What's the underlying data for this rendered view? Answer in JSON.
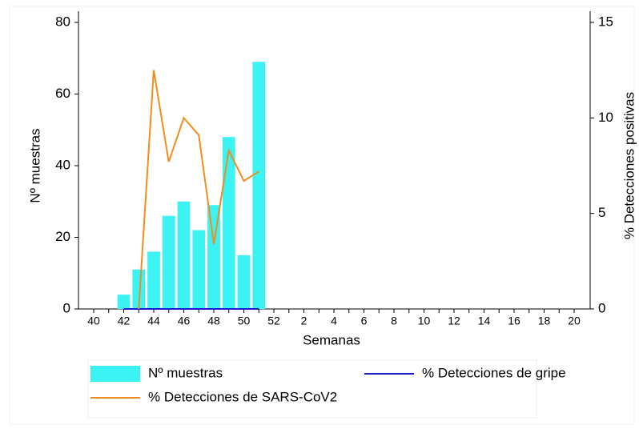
{
  "chart_data": {
    "type": "bar",
    "x_label": "Semanas",
    "y_label": "Nº muestras",
    "y2_label": "% Detecciones positivas",
    "categories": [
      "40",
      null,
      "42",
      null,
      "44",
      null,
      "46",
      null,
      "48",
      null,
      "50",
      null,
      "52",
      null,
      "2",
      null,
      "4",
      null,
      "6",
      null,
      "8",
      null,
      "10",
      null,
      "12",
      null,
      "14",
      null,
      "16",
      null,
      "18",
      null,
      "20"
    ],
    "ylim": [
      0,
      80
    ],
    "yticks": [
      0,
      20,
      40,
      60,
      80
    ],
    "y2lim": [
      0,
      15
    ],
    "y2ticks": [
      0,
      5,
      10,
      15
    ],
    "series": [
      {
        "name": "Nº muestras",
        "type": "bar",
        "color": "#3cf3f3",
        "values": [
          null,
          null,
          4,
          11,
          16,
          26,
          30,
          22,
          29,
          48,
          15,
          69,
          null,
          null,
          null,
          null,
          null,
          null,
          null,
          null,
          null,
          null,
          null,
          null,
          null,
          null,
          null,
          null,
          null,
          null,
          null,
          null,
          null
        ]
      },
      {
        "name": "% Detecciones de gripe",
        "type": "line",
        "axis": "y2",
        "color": "#1a1acc",
        "values": [
          null,
          null,
          0,
          0,
          0,
          0,
          0,
          0,
          0,
          0,
          0,
          0,
          null,
          null,
          null,
          null,
          null,
          null,
          null,
          null,
          null,
          null,
          null,
          null,
          null,
          null,
          null,
          null,
          null,
          null,
          null,
          null,
          null
        ]
      },
      {
        "name": "% Detecciones de SARS-CoV2",
        "type": "line",
        "axis": "y2",
        "color": "#f28c1e",
        "values": [
          null,
          null,
          null,
          0,
          12.5,
          7.7,
          10,
          9.1,
          3.4,
          8.3,
          6.7,
          7.2,
          null,
          null,
          null,
          null,
          null,
          null,
          null,
          null,
          null,
          null,
          null,
          null,
          null,
          null,
          null,
          null,
          null,
          null,
          null,
          null,
          null
        ]
      }
    ]
  }
}
